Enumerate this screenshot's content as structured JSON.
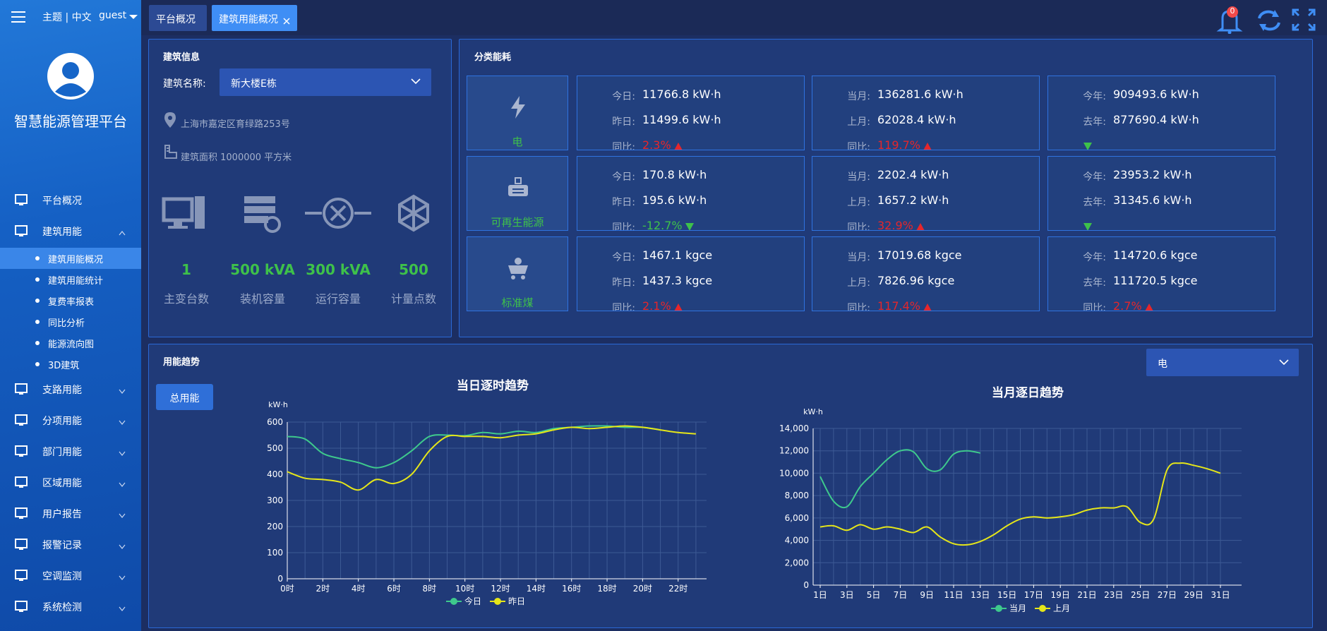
{
  "header": {
    "theme_language": "主题 | 中文",
    "user": "guest",
    "notification_count": "0",
    "tabs": [
      "平台概况",
      "建筑用能概况"
    ]
  },
  "sidebar": {
    "title": "智慧能源管理平台",
    "menu": [
      {
        "label": "平台概况"
      },
      {
        "label": "建筑用能",
        "children": [
          "建筑用能概况",
          "建筑用能统计",
          "复费率报表",
          "同比分析",
          "能源流向图",
          "3D建筑"
        ]
      },
      {
        "label": "支路用能"
      },
      {
        "label": "分项用能"
      },
      {
        "label": "部门用能"
      },
      {
        "label": "区域用能"
      },
      {
        "label": "用户报告"
      },
      {
        "label": "报警记录"
      },
      {
        "label": "空调监测"
      },
      {
        "label": "系统检测"
      }
    ]
  },
  "building_info": {
    "title": "建筑信息",
    "name_label": "建筑名称:",
    "name_value": "新大楼E栋",
    "address": "上海市嘉定区育绿路253号",
    "area": "建筑面积 1000000 平方米",
    "stats": [
      {
        "value": "1",
        "label": "主变台数"
      },
      {
        "value": "500 kVA",
        "label": "装机容量"
      },
      {
        "value": "300 kVA",
        "label": "运行容量"
      },
      {
        "value": "500",
        "label": "计量点数"
      }
    ]
  },
  "classification": {
    "title": "分类能耗",
    "rows": [
      {
        "name": "电",
        "cells": [
          [
            {
              "label": "今日:",
              "value": "11766.8 kW·h"
            },
            {
              "label": "昨日:",
              "value": "11499.6 kW·h"
            },
            {
              "label": "同比:",
              "value": "2.3%",
              "trend": "up"
            }
          ],
          [
            {
              "label": "当月:",
              "value": "136281.6 kW·h"
            },
            {
              "label": "上月:",
              "value": "62028.4 kW·h"
            },
            {
              "label": "同比:",
              "value": "119.7%",
              "trend": "up"
            }
          ],
          [
            {
              "label": "今年:",
              "value": "909493.6 kW·h"
            },
            {
              "label": "去年:",
              "value": "877690.4 kW·h"
            },
            {
              "trend": "down"
            }
          ]
        ]
      },
      {
        "name": "可再生能源",
        "cells": [
          [
            {
              "label": "今日:",
              "value": "170.8 kW·h"
            },
            {
              "label": "昨日:",
              "value": "195.6 kW·h"
            },
            {
              "label": "同比:",
              "value": "-12.7%",
              "trend": "down"
            }
          ],
          [
            {
              "label": "当月:",
              "value": "2202.4 kW·h"
            },
            {
              "label": "上月:",
              "value": "1657.2 kW·h"
            },
            {
              "label": "同比:",
              "value": "32.9%",
              "trend": "up"
            }
          ],
          [
            {
              "label": "今年:",
              "value": "23953.2 kW·h"
            },
            {
              "label": "去年:",
              "value": "31345.6 kW·h"
            },
            {
              "trend": "down"
            }
          ]
        ]
      },
      {
        "name": "标准煤",
        "cells": [
          [
            {
              "label": "今日:",
              "value": "1467.1 kgce"
            },
            {
              "label": "昨日:",
              "value": "1437.3 kgce"
            },
            {
              "label": "同比:",
              "value": "2.1%",
              "trend": "up"
            }
          ],
          [
            {
              "label": "当月:",
              "value": "17019.68 kgce"
            },
            {
              "label": "上月:",
              "value": "7826.96 kgce"
            },
            {
              "label": "同比:",
              "value": "117.4%",
              "trend": "up"
            }
          ],
          [
            {
              "label": "今年:",
              "value": "114720.6 kgce"
            },
            {
              "label": "去年:",
              "value": "111720.5 kgce"
            },
            {
              "label": "同比:",
              "value": "2.7%",
              "trend": "up"
            }
          ]
        ]
      }
    ]
  },
  "trend": {
    "title": "用能趋势",
    "button": "总用能",
    "energy_select": "电"
  },
  "chart_data": [
    {
      "type": "line",
      "title": "当日逐时趋势",
      "y_label": "kW·h",
      "smooth": true,
      "grid": true,
      "categories": [
        "0时",
        null,
        "2时",
        null,
        "4时",
        null,
        "6时",
        null,
        "8时",
        null,
        "10时",
        null,
        "12时",
        null,
        "14时",
        null,
        "16时",
        null,
        "18时",
        null,
        "20时",
        null,
        "22时",
        null
      ],
      "series": [
        {
          "name": "今日",
          "color": "#3ec98c",
          "values": [
            545,
            535,
            480,
            460,
            445,
            425,
            445,
            490,
            545,
            550,
            548,
            560,
            555,
            565,
            560,
            575,
            580,
            585,
            585,
            580,
            580,
            570,
            null,
            null
          ]
        },
        {
          "name": "昨日",
          "color": "#e5e619",
          "values": [
            410,
            385,
            380,
            370,
            340,
            380,
            365,
            400,
            490,
            545,
            545,
            545,
            540,
            550,
            555,
            570,
            580,
            575,
            580,
            585,
            580,
            570,
            560,
            555
          ]
        }
      ],
      "ylim": [
        0,
        600
      ],
      "yticks": [
        0,
        100,
        200,
        300,
        400,
        500,
        600
      ]
    },
    {
      "type": "line",
      "title": "当月逐日趋势",
      "y_label": "kW·h",
      "smooth": true,
      "grid": true,
      "categories": [
        "1日",
        null,
        "3日",
        null,
        "5日",
        null,
        "7日",
        null,
        "9日",
        null,
        "11日",
        null,
        "13日",
        null,
        "15日",
        null,
        "17日",
        null,
        "19日",
        null,
        "21日",
        null,
        "23日",
        null,
        "25日",
        null,
        "27日",
        null,
        "29日",
        null,
        "31日"
      ],
      "series": [
        {
          "name": "当月",
          "color": "#3ec98c",
          "values": [
            9700,
            7500,
            7000,
            8800,
            10000,
            11200,
            12000,
            11900,
            10400,
            10300,
            11700,
            12000,
            11800,
            null,
            null,
            null,
            null,
            null,
            null,
            null,
            null,
            null,
            null,
            null,
            null,
            null,
            null,
            null,
            null,
            null,
            null
          ]
        },
        {
          "name": "上月",
          "color": "#e5e619",
          "values": [
            5200,
            5300,
            4900,
            5400,
            5000,
            5200,
            5000,
            4700,
            5200,
            4300,
            3700,
            3600,
            3900,
            4500,
            5300,
            5900,
            6100,
            6000,
            6100,
            6300,
            6700,
            6900,
            6900,
            7000,
            5600,
            5900,
            10300,
            10900,
            10700,
            10400,
            10000
          ]
        }
      ],
      "ylim": [
        0,
        14000
      ],
      "yticks": [
        0,
        {
          "value": 2000,
          "label": "2,000"
        },
        {
          "value": 4000,
          "label": "4,000"
        },
        {
          "value": 6000,
          "label": "6,000"
        },
        {
          "value": 8000,
          "label": "8,000"
        },
        {
          "value": 10000,
          "label": "10,000"
        },
        {
          "value": 12000,
          "label": "12,000"
        },
        {
          "value": 14000,
          "label": "14,000"
        }
      ]
    }
  ]
}
